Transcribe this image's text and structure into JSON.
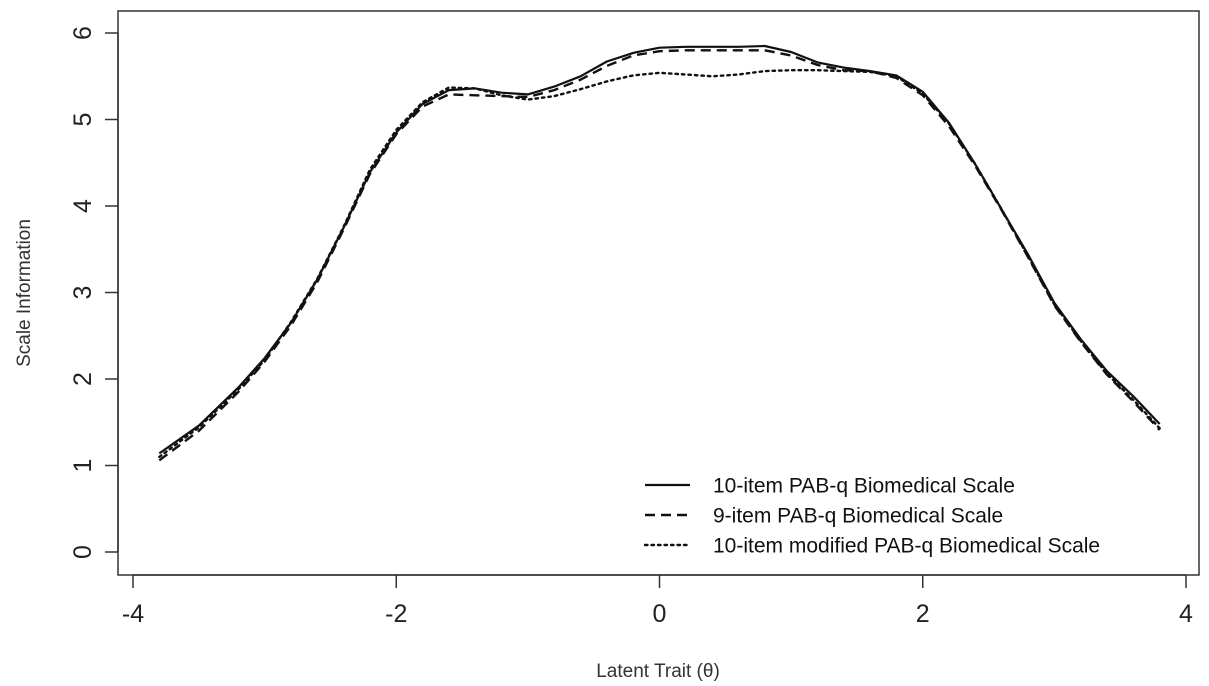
{
  "chart_data": {
    "type": "line",
    "title": "",
    "xlabel": "Latent Trait (θ)",
    "ylabel": "Scale Information",
    "xlim": [
      -4,
      4
    ],
    "ylim": [
      0,
      6
    ],
    "xticks": [
      -4,
      -2,
      0,
      2,
      4
    ],
    "yticks": [
      0,
      1,
      2,
      3,
      4,
      5,
      6
    ],
    "xtick_labels": [
      "-4",
      "-2",
      "0",
      "2",
      "4"
    ],
    "ytick_labels": [
      "0",
      "1",
      "2",
      "3",
      "4",
      "5",
      "6"
    ],
    "grid": false,
    "legend_position": "bottom-right",
    "colors": {
      "line": "#111111",
      "axis": "#333333",
      "text": "#222222"
    },
    "series": [
      {
        "name": "10-item PAB-q Biomedical Scale",
        "style": "solid",
        "x": [
          -3.8,
          -3.5,
          -3.2,
          -3.0,
          -2.8,
          -2.6,
          -2.4,
          -2.2,
          -2.0,
          -1.8,
          -1.6,
          -1.4,
          -1.2,
          -1.0,
          -0.8,
          -0.6,
          -0.4,
          -0.2,
          0.0,
          0.2,
          0.4,
          0.6,
          0.8,
          1.0,
          1.2,
          1.4,
          1.6,
          1.8,
          2.0,
          2.2,
          2.4,
          2.6,
          2.8,
          3.0,
          3.2,
          3.4,
          3.6,
          3.8
        ],
        "y": [
          1.14,
          1.46,
          1.9,
          2.24,
          2.65,
          3.15,
          3.75,
          4.39,
          4.85,
          5.18,
          5.34,
          5.36,
          5.31,
          5.29,
          5.38,
          5.5,
          5.67,
          5.77,
          5.83,
          5.84,
          5.84,
          5.84,
          5.85,
          5.78,
          5.66,
          5.6,
          5.56,
          5.51,
          5.32,
          4.96,
          4.48,
          3.96,
          3.44,
          2.88,
          2.46,
          2.09,
          1.8,
          1.48
        ]
      },
      {
        "name": "9-item PAB-q Biomedical Scale",
        "style": "dashed",
        "x": [
          -3.8,
          -3.5,
          -3.2,
          -3.0,
          -2.8,
          -2.6,
          -2.4,
          -2.2,
          -2.0,
          -1.8,
          -1.6,
          -1.4,
          -1.2,
          -1.0,
          -0.8,
          -0.6,
          -0.4,
          -0.2,
          0.0,
          0.2,
          0.4,
          0.6,
          0.8,
          1.0,
          1.2,
          1.4,
          1.6,
          1.8,
          2.0,
          2.2,
          2.4,
          2.6,
          2.8,
          3.0,
          3.2,
          3.4,
          3.6,
          3.8
        ],
        "y": [
          1.06,
          1.4,
          1.85,
          2.2,
          2.62,
          3.12,
          3.73,
          4.37,
          4.83,
          5.15,
          5.29,
          5.28,
          5.27,
          5.26,
          5.34,
          5.46,
          5.62,
          5.74,
          5.79,
          5.8,
          5.8,
          5.8,
          5.8,
          5.74,
          5.63,
          5.57,
          5.56,
          5.48,
          5.28,
          4.92,
          4.46,
          3.95,
          3.41,
          2.85,
          2.43,
          2.05,
          1.74,
          1.41
        ]
      },
      {
        "name": "10-item modified PAB-q Biomedical Scale",
        "style": "dotted",
        "x": [
          -3.8,
          -3.5,
          -3.2,
          -3.0,
          -2.8,
          -2.6,
          -2.4,
          -2.2,
          -2.0,
          -1.8,
          -1.6,
          -1.4,
          -1.2,
          -1.0,
          -0.8,
          -0.6,
          -0.4,
          -0.2,
          0.0,
          0.2,
          0.4,
          0.6,
          0.8,
          1.0,
          1.2,
          1.4,
          1.6,
          1.8,
          2.0,
          2.2,
          2.4,
          2.6,
          2.8,
          3.0,
          3.2,
          3.4,
          3.6,
          3.8
        ],
        "y": [
          1.1,
          1.44,
          1.88,
          2.22,
          2.66,
          3.16,
          3.76,
          4.42,
          4.88,
          5.2,
          5.37,
          5.36,
          5.28,
          5.23,
          5.27,
          5.35,
          5.44,
          5.51,
          5.54,
          5.52,
          5.5,
          5.52,
          5.56,
          5.57,
          5.57,
          5.56,
          5.55,
          5.5,
          5.3,
          4.95,
          4.48,
          3.96,
          3.42,
          2.86,
          2.44,
          2.06,
          1.76,
          1.43
        ]
      }
    ]
  }
}
